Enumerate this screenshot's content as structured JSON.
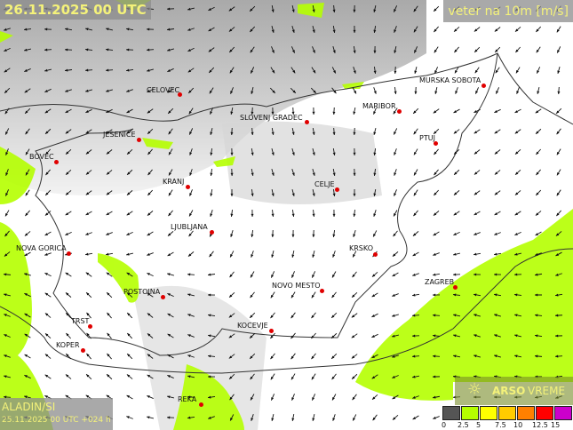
{
  "header": {
    "timestamp": "26.11.2025 00 UTC",
    "parameter": "veter na 10m [m/s]"
  },
  "model": {
    "name": "ALADIN/SI",
    "run": "25.11.2025 00 UTC +024 h"
  },
  "logo": {
    "brand": "ARSO",
    "sub": "VREME",
    "icon": "sun-icon"
  },
  "legend": {
    "ticks": [
      "0",
      "2.5",
      "5",
      "7.5",
      "10",
      "12.5",
      "15"
    ],
    "colors": [
      "#555555",
      "#b5ff00",
      "#ffff00",
      "#ffcc00",
      "#ff8000",
      "#ff0000",
      "#cc00cc"
    ]
  },
  "cities": [
    {
      "name": "CELOVEC"
    },
    {
      "name": "SLOVENJ GRADEC"
    },
    {
      "name": "MARIBOR"
    },
    {
      "name": "MURSKA SOBOTA"
    },
    {
      "name": "PTUJ"
    },
    {
      "name": "JESENICE"
    },
    {
      "name": "BOVEC"
    },
    {
      "name": "KRANJ"
    },
    {
      "name": "CELJE"
    },
    {
      "name": "LJUBLJANA"
    },
    {
      "name": "NOVA GORICA"
    },
    {
      "name": "KRSKO"
    },
    {
      "name": "ZAGREB"
    },
    {
      "name": "NOVO MESTO"
    },
    {
      "name": "POSTOJNA"
    },
    {
      "name": "KOCEVJE"
    },
    {
      "name": "TRST"
    },
    {
      "name": "KOPER"
    },
    {
      "name": "REKA"
    }
  ],
  "colors": {
    "low_wind": "#b5ff00",
    "city_dot": "#e00000",
    "label_text": "#f4f27a"
  }
}
